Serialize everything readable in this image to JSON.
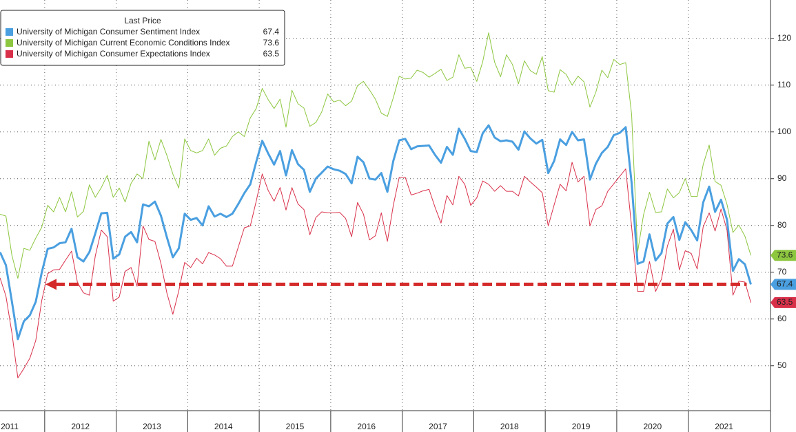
{
  "chart_data": {
    "type": "line",
    "legend_title": "Last Price",
    "x": [
      2011.375,
      2011.458,
      2011.542,
      2011.625,
      2011.708,
      2011.792,
      2011.875,
      2011.958,
      2012.042,
      2012.125,
      2012.208,
      2012.292,
      2012.375,
      2012.458,
      2012.542,
      2012.625,
      2012.708,
      2012.792,
      2012.875,
      2012.958,
      2013.042,
      2013.125,
      2013.208,
      2013.292,
      2013.375,
      2013.458,
      2013.542,
      2013.625,
      2013.708,
      2013.792,
      2013.875,
      2013.958,
      2014.042,
      2014.125,
      2014.208,
      2014.292,
      2014.375,
      2014.458,
      2014.542,
      2014.625,
      2014.708,
      2014.792,
      2014.875,
      2014.958,
      2015.042,
      2015.125,
      2015.208,
      2015.292,
      2015.375,
      2015.458,
      2015.542,
      2015.625,
      2015.708,
      2015.792,
      2015.875,
      2015.958,
      2016.042,
      2016.125,
      2016.208,
      2016.292,
      2016.375,
      2016.458,
      2016.542,
      2016.625,
      2016.708,
      2016.792,
      2016.875,
      2016.958,
      2017.042,
      2017.125,
      2017.208,
      2017.292,
      2017.375,
      2017.458,
      2017.542,
      2017.625,
      2017.708,
      2017.792,
      2017.875,
      2017.958,
      2018.042,
      2018.125,
      2018.208,
      2018.292,
      2018.375,
      2018.458,
      2018.542,
      2018.625,
      2018.708,
      2018.792,
      2018.875,
      2018.958,
      2019.042,
      2019.125,
      2019.208,
      2019.292,
      2019.375,
      2019.458,
      2019.542,
      2019.625,
      2019.708,
      2019.792,
      2019.875,
      2019.958,
      2020.042,
      2020.125,
      2020.208,
      2020.292,
      2020.375,
      2020.458,
      2020.542,
      2020.625,
      2020.708,
      2020.792,
      2020.875,
      2020.958,
      2021.042,
      2021.125,
      2021.208,
      2021.292,
      2021.375,
      2021.458,
      2021.542,
      2021.625,
      2021.708,
      2021.792,
      2021.875
    ],
    "series": [
      {
        "name": "University of Michigan Consumer Sentiment Index",
        "color": "#4a9fe0",
        "width": 3,
        "values": [
          74.3,
          71.5,
          63.7,
          55.7,
          59.5,
          60.8,
          63.7,
          69.9,
          75.0,
          75.3,
          76.2,
          76.4,
          79.3,
          73.2,
          72.3,
          74.3,
          78.3,
          82.6,
          82.7,
          72.9,
          73.8,
          77.6,
          78.6,
          76.4,
          84.5,
          84.1,
          85.1,
          82.1,
          77.5,
          73.2,
          75.1,
          82.5,
          81.2,
          81.6,
          80.0,
          84.1,
          81.9,
          82.5,
          81.8,
          82.5,
          84.6,
          86.9,
          88.8,
          93.6,
          98.1,
          95.4,
          93.0,
          95.9,
          90.7,
          96.1,
          93.1,
          91.9,
          87.2,
          90.0,
          91.3,
          92.6,
          92.0,
          91.7,
          91.0,
          89.0,
          94.7,
          93.5,
          90.0,
          89.8,
          91.2,
          87.2,
          93.8,
          98.2,
          98.5,
          96.3,
          96.9,
          97.0,
          97.1,
          95.1,
          93.4,
          96.8,
          95.1,
          100.7,
          98.5,
          95.9,
          95.7,
          99.7,
          101.4,
          98.8,
          98.0,
          98.2,
          97.9,
          96.2,
          100.1,
          98.6,
          97.5,
          98.3,
          91.2,
          93.8,
          98.4,
          97.2,
          100.0,
          98.2,
          98.4,
          89.8,
          93.2,
          95.5,
          96.8,
          99.3,
          99.8,
          101.0,
          89.1,
          71.8,
          72.3,
          78.1,
          72.5,
          74.1,
          80.4,
          81.8,
          76.9,
          80.7,
          79.0,
          76.8,
          84.9,
          88.3,
          82.9,
          85.5,
          81.2,
          70.3,
          72.8,
          71.7,
          67.4
        ]
      },
      {
        "name": "University of Michigan Current Economic Conditions Index",
        "color": "#8dc63f",
        "width": 1,
        "values": [
          82.4,
          82.0,
          73.6,
          68.7,
          75.1,
          74.7,
          77.3,
          79.6,
          84.3,
          82.9,
          86.0,
          82.9,
          87.2,
          81.8,
          83.0,
          88.7,
          86.0,
          88.1,
          90.7,
          86.0,
          88.0,
          85.0,
          89.0,
          91.0,
          90.0,
          98.0,
          94.0,
          98.4,
          95.0,
          91.0,
          88.0,
          98.5,
          96.0,
          95.5,
          96.0,
          98.5,
          95.0,
          96.5,
          97.0,
          99.0,
          100.0,
          99.0,
          103.0,
          105.0,
          109.3,
          106.9,
          105.0,
          107.0,
          101.0,
          108.9,
          106.0,
          105.1,
          101.2,
          102.0,
          104.3,
          108.1,
          106.4,
          106.8,
          105.6,
          106.6,
          109.9,
          110.8,
          109.0,
          107.0,
          104.0,
          103.3,
          107.3,
          111.9,
          111.3,
          111.5,
          113.2,
          112.7,
          111.7,
          112.5,
          113.4,
          111.0,
          111.7,
          116.5,
          113.6,
          113.8,
          110.8,
          115.0,
          121.2,
          114.9,
          111.8,
          116.5,
          114.4,
          110.3,
          115.2,
          113.1,
          112.3,
          116.1,
          108.8,
          108.5,
          113.3,
          112.3,
          110.0,
          111.9,
          110.7,
          105.3,
          108.5,
          113.2,
          111.6,
          115.5,
          114.4,
          114.8,
          103.7,
          74.3,
          82.3,
          87.1,
          82.8,
          82.9,
          87.8,
          85.9,
          87.0,
          90.0,
          86.2,
          86.2,
          93.0,
          97.2,
          89.4,
          88.6,
          84.5,
          78.5,
          80.1,
          77.7,
          73.6
        ]
      },
      {
        "name": "University of Michigan Consumer Expectations Index",
        "color": "#d9304a",
        "width": 1,
        "values": [
          68.8,
          64.9,
          57.0,
          47.4,
          49.4,
          51.6,
          55.4,
          63.9,
          69.7,
          70.5,
          70.6,
          72.6,
          74.5,
          67.8,
          65.6,
          65.1,
          73.5,
          79.0,
          77.6,
          63.8,
          64.7,
          70.2,
          71.0,
          67.0,
          79.9,
          77.0,
          76.6,
          71.9,
          65.6,
          61.0,
          66.0,
          72.1,
          71.0,
          73.0,
          71.8,
          74.2,
          73.7,
          72.9,
          71.3,
          71.3,
          75.4,
          79.5,
          79.9,
          85.2,
          91.0,
          87.5,
          85.2,
          88.1,
          83.3,
          88.1,
          84.6,
          83.4,
          78.0,
          81.7,
          82.9,
          82.7,
          82.7,
          82.8,
          81.5,
          77.6,
          84.9,
          82.4,
          76.9,
          77.8,
          82.7,
          76.6,
          84.3,
          90.3,
          90.3,
          86.5,
          86.9,
          87.4,
          87.7,
          83.9,
          80.5,
          86.4,
          84.4,
          90.5,
          88.8,
          84.3,
          85.9,
          89.5,
          88.8,
          87.3,
          88.5,
          87.3,
          87.3,
          86.3,
          90.5,
          89.3,
          88.2,
          87.0,
          79.9,
          84.4,
          88.8,
          87.4,
          93.5,
          89.3,
          90.5,
          79.9,
          83.4,
          84.2,
          87.3,
          88.9,
          90.5,
          92.1,
          79.7,
          65.9,
          65.9,
          72.3,
          65.9,
          68.5,
          75.6,
          79.2,
          70.5,
          74.6,
          74.0,
          70.7,
          79.7,
          82.7,
          78.8,
          83.5,
          79.0,
          65.1,
          68.1,
          67.9,
          63.5
        ]
      }
    ],
    "xlim": [
      2011.375,
      2022.15
    ],
    "xticks": [
      {
        "value": 2011.5,
        "label": "2011"
      },
      {
        "value": 2012.5,
        "label": "2012"
      },
      {
        "value": 2013.5,
        "label": "2013"
      },
      {
        "value": 2014.5,
        "label": "2014"
      },
      {
        "value": 2015.5,
        "label": "2015"
      },
      {
        "value": 2016.5,
        "label": "2016"
      },
      {
        "value": 2017.5,
        "label": "2017"
      },
      {
        "value": 2018.5,
        "label": "2018"
      },
      {
        "value": 2019.5,
        "label": "2019"
      },
      {
        "value": 2020.5,
        "label": "2020"
      },
      {
        "value": 2021.5,
        "label": "2021"
      }
    ],
    "ylim": [
      40.4,
      128.2
    ],
    "yticks": [
      50,
      60,
      70,
      80,
      90,
      100,
      110,
      120
    ],
    "grid": true,
    "legend": "upper left"
  }
}
